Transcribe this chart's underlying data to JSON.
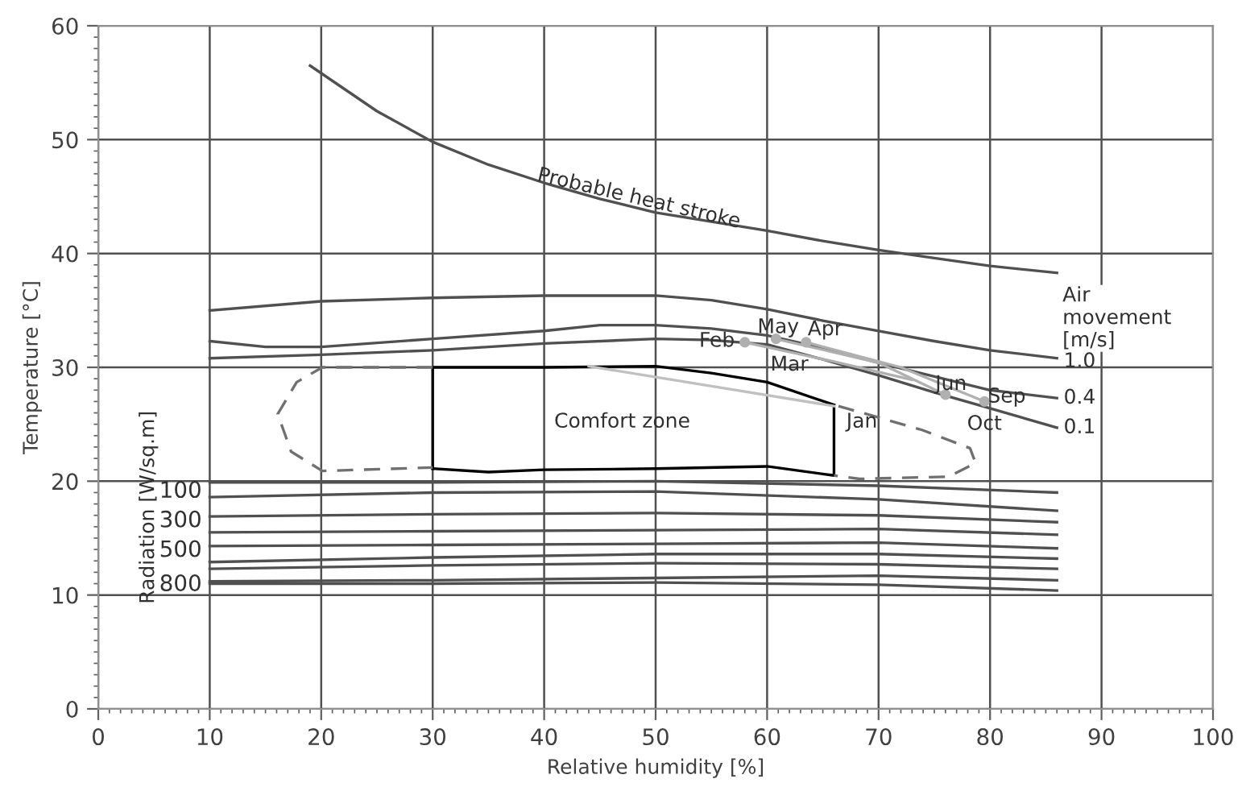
{
  "chart_data": {
    "type": "line",
    "xlabel": "Relative humidity [%]",
    "ylabel": "Temperature [°C]",
    "xlim": [
      0,
      100
    ],
    "ylim": [
      0,
      60
    ],
    "xticks": [
      0,
      10,
      20,
      30,
      40,
      50,
      60,
      70,
      80,
      90,
      100
    ],
    "yticks": [
      0,
      10,
      20,
      30,
      40,
      50,
      60
    ],
    "grid": true,
    "legend": false,
    "marker": "none",
    "line_style": "solid",
    "series": [
      {
        "color": "#505050",
        "x": [
          19,
          25,
          30,
          35,
          40,
          45,
          50,
          55,
          60,
          65,
          70,
          75,
          80,
          86
        ],
        "values": [
          56.5,
          52.5,
          49.8,
          47.8,
          46.2,
          44.8,
          43.6,
          42.8,
          42.0,
          41.1,
          40.3,
          39.6,
          38.9,
          38.3
        ]
      },
      {
        "color": "#505050",
        "x": [
          10,
          20,
          30,
          40,
          50,
          55,
          60,
          65,
          70,
          75,
          80,
          86
        ],
        "values": [
          35.0,
          35.8,
          36.1,
          36.3,
          36.3,
          35.9,
          35.1,
          34.1,
          33.2,
          32.3,
          31.5,
          30.8
        ]
      },
      {
        "color": "#505050",
        "x": [
          10,
          15,
          20,
          30,
          40,
          45,
          50,
          55,
          60,
          65,
          70,
          75,
          80,
          86
        ],
        "values": [
          32.3,
          31.8,
          31.8,
          32.5,
          33.2,
          33.7,
          33.7,
          33.4,
          32.8,
          31.7,
          30.4,
          29.2,
          28.0,
          27.3
        ]
      },
      {
        "color": "#505050",
        "x": [
          10,
          20,
          30,
          40,
          50,
          55,
          60,
          65,
          70,
          75,
          80,
          86
        ],
        "values": [
          30.8,
          31.1,
          31.5,
          32.1,
          32.5,
          32.4,
          32.0,
          30.7,
          29.3,
          27.8,
          26.4,
          24.7
        ]
      },
      {
        "color": "#000000",
        "x": [
          30,
          30,
          40,
          50,
          55,
          60,
          66
        ],
        "values": [
          21.1,
          30.0,
          30.0,
          30.1,
          29.5,
          28.7,
          26.7
        ]
      },
      {
        "color": "#000000",
        "x": [
          30,
          35,
          40,
          50,
          60,
          66,
          66
        ],
        "values": [
          21.1,
          20.8,
          21.0,
          21.1,
          21.3,
          20.5,
          26.7
        ]
      },
      {
        "color": "#707070",
        "line_style": "dashed",
        "x": [
          30,
          20.1,
          17.8,
          16.1,
          17.3,
          20.1,
          30
        ],
        "values": [
          30.0,
          30.0,
          28.7,
          25.9,
          22.6,
          20.9,
          21.2
        ]
      },
      {
        "color": "#707070",
        "line_style": "dashed",
        "x": [
          66.4,
          73.9,
          78.2,
          78.7,
          76.3,
          68.3,
          66
        ],
        "values": [
          26.6,
          24.5,
          22.9,
          21.6,
          20.4,
          20.2,
          20.5
        ]
      },
      {
        "color": "#505050",
        "x": [
          10,
          30,
          50,
          70,
          86
        ],
        "values": [
          19.9,
          19.9,
          20.0,
          19.6,
          19.0
        ]
      },
      {
        "color": "#505050",
        "x": [
          10,
          30,
          50,
          70,
          86
        ],
        "values": [
          18.6,
          19.0,
          19.1,
          18.4,
          17.4
        ]
      },
      {
        "color": "#505050",
        "x": [
          10,
          30,
          50,
          70,
          86
        ],
        "values": [
          16.9,
          17.1,
          17.2,
          17.0,
          16.4
        ]
      },
      {
        "color": "#505050",
        "x": [
          10,
          30,
          50,
          70,
          86
        ],
        "values": [
          15.5,
          15.6,
          15.7,
          15.8,
          15.3
        ]
      },
      {
        "color": "#505050",
        "x": [
          10,
          30,
          50,
          70,
          86
        ],
        "values": [
          14.3,
          14.4,
          14.5,
          14.6,
          14.1
        ]
      },
      {
        "color": "#505050",
        "x": [
          10,
          30,
          50,
          70,
          86
        ],
        "values": [
          12.9,
          13.3,
          13.6,
          13.6,
          13.2
        ]
      },
      {
        "color": "#505050",
        "x": [
          10,
          30,
          50,
          70,
          86
        ],
        "values": [
          12.3,
          12.6,
          12.8,
          12.7,
          12.3
        ]
      },
      {
        "color": "#505050",
        "x": [
          10,
          30,
          50,
          70,
          86
        ],
        "values": [
          11.2,
          11.3,
          11.5,
          11.7,
          11.3
        ]
      },
      {
        "color": "#505050",
        "x": [
          10,
          30,
          50,
          70,
          86
        ],
        "values": [
          11.0,
          11.0,
          11.1,
          10.9,
          10.4
        ]
      },
      {
        "color": "#c0c0c0",
        "x": [
          44,
          66
        ],
        "values": [
          30.1,
          26.6
        ]
      },
      {
        "color": "#b0b0b0",
        "x": [
          58,
          66,
          73
        ],
        "values": [
          32.2,
          30.5,
          28.9
        ]
      },
      {
        "color": "#b0b0b0",
        "x": [
          60.8,
          70,
          76
        ],
        "values": [
          32.5,
          30.4,
          27.6
        ]
      },
      {
        "color": "#b0b0b0",
        "x": [
          63.5,
          72,
          79.5
        ],
        "values": [
          32.2,
          30.0,
          27.0
        ]
      },
      {
        "type": "scatter",
        "marker": "circle",
        "color": "#b0b0b0",
        "x": [
          58,
          60.8,
          63.5,
          76,
          79.5
        ],
        "values": [
          32.2,
          32.5,
          32.2,
          27.6,
          27.0
        ]
      }
    ],
    "annotations": [
      {
        "text": "Probable heat stroke",
        "x": 48.5,
        "y": 44.8
      },
      "Radiation [W/sq.m]",
      "100",
      {
        "text": "300",
        "x": 9.3,
        "y": 16.5
      },
      "500",
      {
        "text": "800",
        "x": 9.3,
        "y": 10.9
      },
      "Air\nmovement\n[m/s]",
      {
        "text": "1.0",
        "x": 86.6,
        "y": 30.5
      },
      {
        "text": "0.4",
        "x": 86.6,
        "y": 27.3
      },
      {
        "text": "0.1",
        "x": 86.6,
        "y": 24.7
      },
      "Comfort zone",
      {
        "text": "Feb",
        "x": 55.5,
        "y": 32.3
      },
      {
        "text": "May",
        "x": 61,
        "y": 33.5
      },
      "Apr",
      "Mar",
      {
        "text": "Jun",
        "x": 76.5,
        "y": 28.5
      },
      {
        "text": "Sep",
        "x": 81.5,
        "y": 27.4
      },
      "Oct",
      {
        "text": "Jan",
        "x": 68.5,
        "y": 25.2
      }
    ]
  }
}
